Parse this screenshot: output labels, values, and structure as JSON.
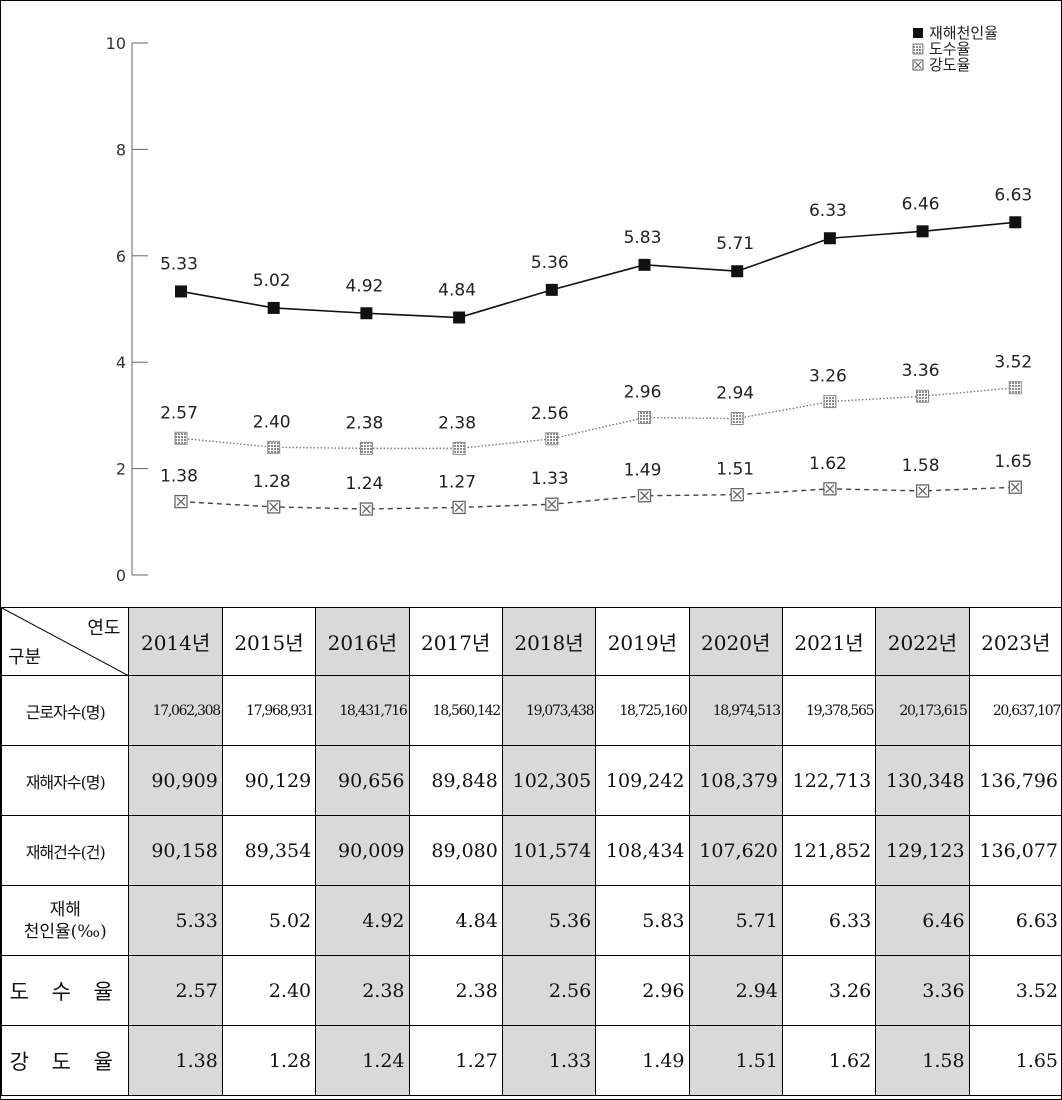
{
  "chart_data": {
    "type": "line",
    "categories": [
      "2014",
      "2015",
      "2016",
      "2017",
      "2018",
      "2019",
      "2020",
      "2021",
      "2022",
      "2023"
    ],
    "ylim": [
      0,
      10
    ],
    "yticks": [
      0,
      2,
      4,
      6,
      8,
      10
    ],
    "legend_position": "top-right",
    "grid": false,
    "series": [
      {
        "name": "재해천인율",
        "marker": "filled-square",
        "line": "solid",
        "color": "#111111",
        "values": [
          5.33,
          5.02,
          4.92,
          4.84,
          5.36,
          5.83,
          5.71,
          6.33,
          6.46,
          6.63
        ],
        "labels": [
          "5.33",
          "5.02",
          "4.92",
          "4.84",
          "5.36",
          "5.83",
          "5.71",
          "6.33",
          "6.46",
          "6.63"
        ]
      },
      {
        "name": "도수율",
        "marker": "grid-square",
        "line": "dotted",
        "color": "#888888",
        "values": [
          2.57,
          2.4,
          2.38,
          2.38,
          2.56,
          2.96,
          2.94,
          3.26,
          3.36,
          3.52
        ],
        "labels": [
          "2.57",
          "2.40",
          "2.38",
          "2.38",
          "2.56",
          "2.96",
          "2.94",
          "3.26",
          "3.36",
          "3.52"
        ]
      },
      {
        "name": "강도율",
        "marker": "crossed-square",
        "line": "dashed",
        "color": "#555555",
        "values": [
          1.38,
          1.28,
          1.24,
          1.27,
          1.33,
          1.49,
          1.51,
          1.62,
          1.58,
          1.65
        ],
        "labels": [
          "1.38",
          "1.28",
          "1.24",
          "1.27",
          "1.33",
          "1.49",
          "1.51",
          "1.62",
          "1.58",
          "1.65"
        ]
      }
    ]
  },
  "table": {
    "corner_top": "연도",
    "corner_bottom": "구분",
    "years": [
      "2014년",
      "2015년",
      "2016년",
      "2017년",
      "2018년",
      "2019년",
      "2020년",
      "2021년",
      "2022년",
      "2023년"
    ],
    "rows": [
      {
        "label": "근로자수(명)",
        "values": [
          "17,062,308",
          "17,968,931",
          "18,431,716",
          "18,560,142",
          "19,073,438",
          "18,725,160",
          "18,974,513",
          "19,378,565",
          "20,173,615",
          "20,637,107"
        ]
      },
      {
        "label": "재해자수(명)",
        "values": [
          "90,909",
          "90,129",
          "90,656",
          "89,848",
          "102,305",
          "109,242",
          "108,379",
          "122,713",
          "130,348",
          "136,796"
        ]
      },
      {
        "label": "재해건수(건)",
        "values": [
          "90,158",
          "89,354",
          "90,009",
          "89,080",
          "101,574",
          "108,434",
          "107,620",
          "121,852",
          "129,123",
          "136,077"
        ]
      },
      {
        "label_line1": "재해",
        "label_line2": "천인율(‰)",
        "values": [
          "5.33",
          "5.02",
          "4.92",
          "4.84",
          "5.36",
          "5.83",
          "5.71",
          "6.33",
          "6.46",
          "6.63"
        ]
      },
      {
        "label": "도 수 율",
        "values": [
          "2.57",
          "2.40",
          "2.38",
          "2.38",
          "2.56",
          "2.96",
          "2.94",
          "3.26",
          "3.36",
          "3.52"
        ]
      },
      {
        "label": "강 도 율",
        "values": [
          "1.38",
          "1.28",
          "1.24",
          "1.27",
          "1.33",
          "1.49",
          "1.51",
          "1.62",
          "1.58",
          "1.65"
        ]
      }
    ]
  }
}
